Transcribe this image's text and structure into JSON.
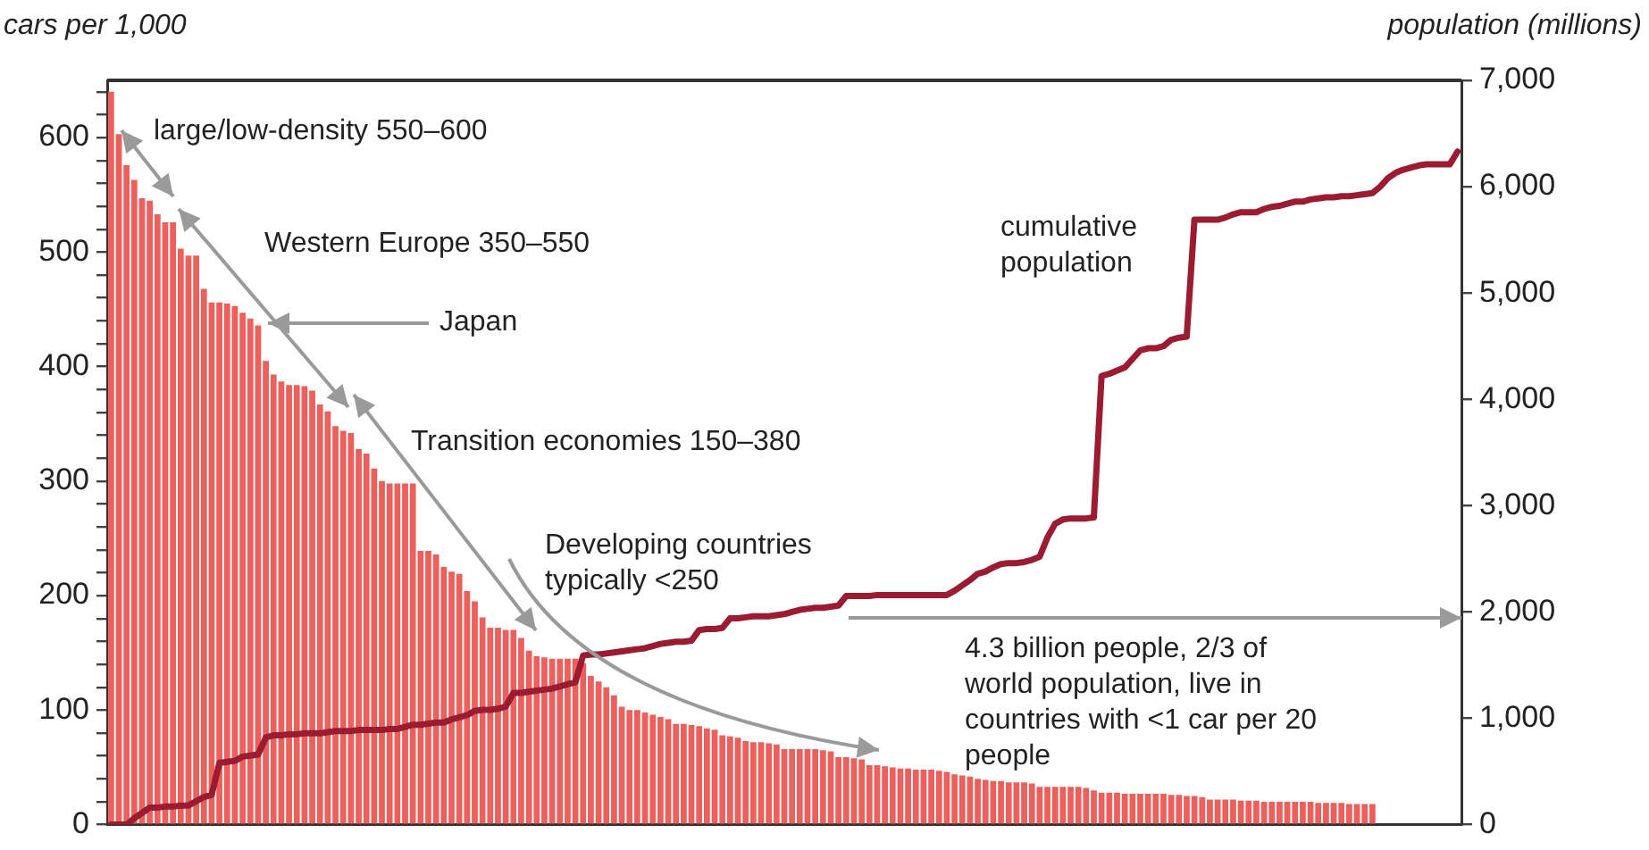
{
  "chart_data": {
    "type": "bar",
    "ylabel": "cars per 1,000",
    "y2label": "population (millions)",
    "categories": [
      null,
      null,
      null,
      null,
      null,
      null,
      null,
      null,
      null,
      null,
      null,
      null,
      null,
      null,
      null,
      null,
      null,
      null,
      null,
      null,
      null,
      null,
      null,
      null,
      null,
      null,
      null,
      null,
      null,
      null,
      null,
      null,
      null,
      null,
      null,
      null,
      null,
      null,
      null,
      null,
      null,
      null,
      null,
      null,
      null,
      null,
      null,
      null,
      null,
      null,
      null,
      null,
      null,
      null,
      null,
      null,
      null,
      null,
      null,
      null,
      null,
      null,
      null,
      null,
      null,
      null,
      null,
      null,
      null,
      null,
      null,
      null,
      null,
      null,
      null,
      null,
      null,
      null,
      null,
      null,
      null,
      null,
      null,
      null,
      null,
      null,
      null,
      null,
      null,
      null,
      null,
      null,
      null,
      null,
      null,
      null,
      null,
      null,
      null,
      null,
      null,
      null,
      null,
      null,
      null,
      null,
      null,
      null,
      null,
      null,
      null,
      null,
      null,
      null,
      null,
      null,
      null,
      null,
      null,
      null,
      null,
      null,
      null,
      null,
      null,
      null,
      null,
      null,
      null,
      null,
      null,
      null,
      null,
      null,
      null,
      null,
      null,
      null,
      null,
      null,
      null,
      null,
      null,
      null,
      null,
      null,
      null,
      null,
      null,
      null,
      null,
      null,
      null,
      null,
      null,
      null,
      null,
      null,
      null,
      null,
      null,
      null,
      null,
      null,
      null,
      null,
      null,
      null,
      null,
      null,
      null,
      null,
      null,
      null,
      null
    ],
    "series": [
      {
        "color": "#eb605a",
        "values": [
          640,
          603,
          576,
          563,
          547,
          545,
          533,
          526,
          526,
          503,
          497,
          497,
          468,
          456,
          456,
          455,
          453,
          447,
          442,
          436,
          405,
          393,
          387,
          384,
          384,
          383,
          379,
          367,
          361,
          348,
          344,
          342,
          328,
          324,
          311,
          300,
          298,
          298,
          298,
          298,
          239,
          239,
          236,
          225,
          221,
          219,
          204,
          195,
          181,
          172,
          172,
          170,
          170,
          163,
          152,
          147,
          146,
          145,
          145,
          145,
          145,
          141,
          130,
          125,
          120,
          113,
          103,
          100,
          100,
          98,
          96,
          94,
          92,
          88,
          88,
          87,
          86,
          84,
          83,
          78,
          77,
          76,
          73,
          72,
          72,
          71,
          70,
          66,
          66,
          66,
          66,
          66,
          65,
          64,
          59,
          59,
          58,
          57,
          52,
          52,
          51,
          50,
          49,
          49,
          48,
          48,
          48,
          47,
          46,
          44,
          43,
          42,
          40,
          39,
          38,
          38,
          37,
          37,
          37,
          36,
          33,
          33,
          33,
          33,
          33,
          33,
          32,
          30,
          28,
          28,
          28,
          27,
          27,
          27,
          27,
          27,
          27,
          26,
          26,
          25,
          25,
          24,
          22,
          22,
          22,
          22,
          21,
          21,
          21,
          20,
          20,
          20,
          20,
          20,
          20,
          20,
          19,
          19,
          19,
          19,
          18,
          18,
          18,
          18,
          null,
          null,
          null,
          null,
          null,
          null,
          null,
          null,
          null,
          null,
          null
        ]
      },
      {
        "type": "line",
        "name": "cumulative population",
        "color": "#9b1b30",
        "axis": "y2",
        "marker": "none",
        "values": [
          0,
          0,
          0,
          60,
          110,
          160,
          160,
          170,
          170,
          180,
          180,
          220,
          260,
          280,
          580,
          590,
          600,
          640,
          650,
          660,
          820,
          840,
          840,
          850,
          850,
          860,
          860,
          860,
          870,
          880,
          880,
          880,
          890,
          890,
          890,
          890,
          900,
          900,
          920,
          940,
          940,
          950,
          960,
          960,
          990,
          1010,
          1030,
          1070,
          1080,
          1080,
          1090,
          1110,
          1240,
          1240,
          1250,
          1260,
          1270,
          1280,
          1300,
          1320,
          1340,
          1590,
          1600,
          1600,
          1610,
          1620,
          1630,
          1640,
          1650,
          1660,
          1680,
          1700,
          1710,
          1720,
          1720,
          1730,
          1830,
          1840,
          1840,
          1850,
          1940,
          1940,
          1950,
          1960,
          1960,
          1960,
          1970,
          1980,
          2000,
          2020,
          2030,
          2040,
          2040,
          2050,
          2060,
          2150,
          2150,
          2150,
          2150,
          2160,
          2160,
          2160,
          2160,
          2160,
          2160,
          2160,
          2160,
          2160,
          2160,
          2200,
          2250,
          2300,
          2360,
          2380,
          2420,
          2450,
          2460,
          2460,
          2470,
          2490,
          2520,
          2700,
          2830,
          2870,
          2880,
          2880,
          2880,
          2890,
          4220,
          4240,
          4270,
          4300,
          4380,
          4460,
          4480,
          4480,
          4500,
          4560,
          4580,
          4590,
          5690,
          5690,
          5690,
          5690,
          5710,
          5740,
          5760,
          5760,
          5760,
          5790,
          5810,
          5820,
          5840,
          5860,
          5860,
          5880,
          5890,
          5900,
          5900,
          5910,
          5910,
          5920,
          5930,
          5940,
          6000,
          6080,
          6130,
          6160,
          6180,
          6200,
          6210,
          6210,
          6210,
          6210,
          6330
        ]
      }
    ],
    "ylim": [
      0,
      650
    ],
    "yticks": [
      0,
      {
        "value": 20,
        "label": null
      },
      {
        "value": 40,
        "label": null
      },
      {
        "value": 60,
        "label": null
      },
      {
        "value": 80,
        "label": null
      },
      100,
      {
        "value": 120,
        "label": null
      },
      {
        "value": 140,
        "label": null
      },
      {
        "value": 160,
        "label": null
      },
      {
        "value": 180,
        "label": null
      },
      200,
      {
        "value": 220,
        "label": null
      },
      {
        "value": 240,
        "label": null
      },
      {
        "value": 260,
        "label": null
      },
      {
        "value": 280,
        "label": null
      },
      300,
      {
        "value": 320,
        "label": null
      },
      {
        "value": 340,
        "label": null
      },
      {
        "value": 360,
        "label": null
      },
      {
        "value": 380,
        "label": null
      },
      400,
      {
        "value": 420,
        "label": null
      },
      {
        "value": 440,
        "label": null
      },
      {
        "value": 460,
        "label": null
      },
      {
        "value": 480,
        "label": null
      },
      500,
      {
        "value": 520,
        "label": null
      },
      {
        "value": 540,
        "label": null
      },
      {
        "value": 560,
        "label": null
      },
      {
        "value": 580,
        "label": null
      },
      600,
      {
        "value": 620,
        "label": null
      },
      {
        "value": 640,
        "label": null
      }
    ],
    "y2lim": [
      0,
      7000
    ],
    "y2ticks": [
      0,
      {
        "value": 1000,
        "label": "1,000"
      },
      {
        "value": 2000,
        "label": "2,000"
      },
      {
        "value": 3000,
        "label": "3,000"
      },
      {
        "value": 4000,
        "label": "4,000"
      },
      {
        "value": 5000,
        "label": "5,000"
      },
      {
        "value": 6000,
        "label": "6,000"
      },
      {
        "value": 7000,
        "label": "7,000"
      }
    ],
    "annotations": [
      "large/low-density 550–600",
      "Western Europe 350–550",
      "Japan",
      "Transition economies 150–380",
      "Developing countries typically <250",
      "4.3 billion people, 2/3 of world population, live in countries with <1 car per 20 people"
    ]
  }
}
